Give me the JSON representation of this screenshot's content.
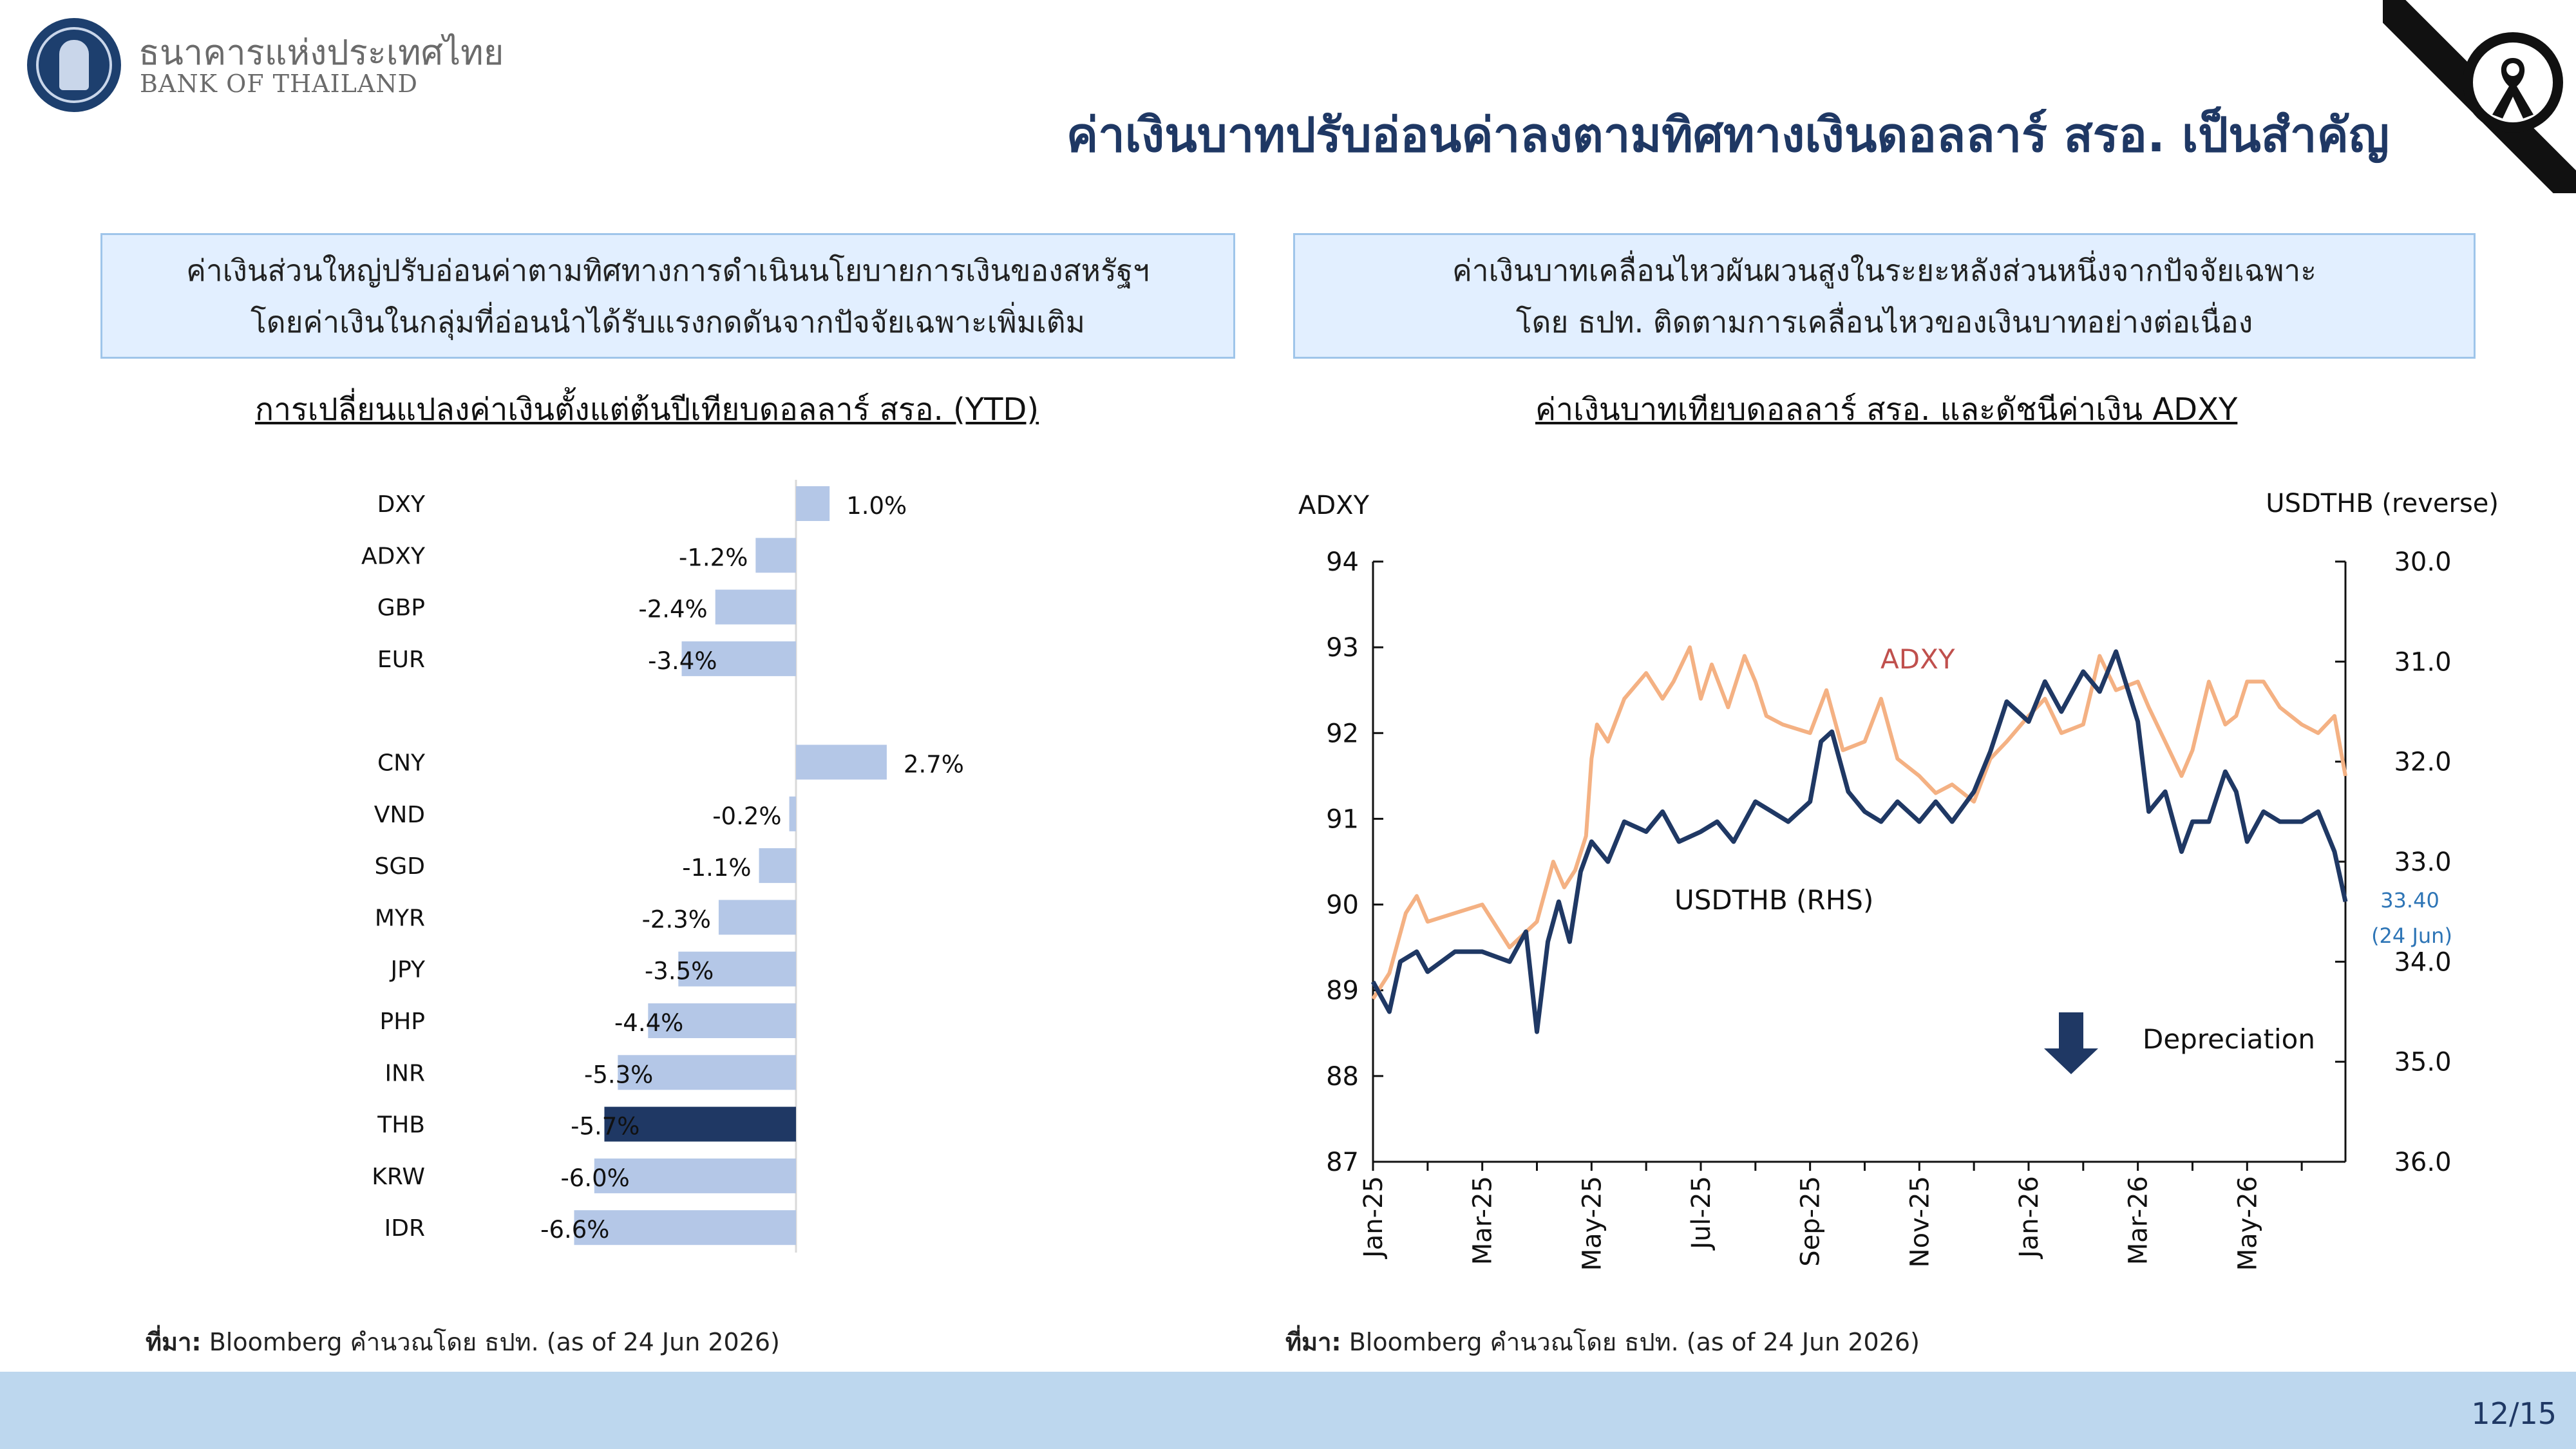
{
  "header": {
    "bank_name_th": "ธนาคารแห่งประเทศไทย",
    "bank_name_en": "BANK OF THAILAND",
    "title": "ค่าเงินบาทปรับอ่อนค่าลงตามทิศทางเงินดอลลาร์ สรอ. เป็นสำคัญ"
  },
  "left_panel": {
    "box_line1": "ค่าเงินส่วนใหญ่ปรับอ่อนค่าตามทิศทางการดำเนินนโยบายการเงินของสหรัฐฯ",
    "box_line2": "โดยค่าเงินในกลุ่มที่อ่อนนำได้รับแรงกดดันจากปัจจัยเฉพาะเพิ่มเติม",
    "chart_title": "การเปลี่ยนแปลงค่าเงินตั้งแต่ต้นปีเทียบดอลลาร์ สรอ. (YTD)",
    "source_label": "ที่มา:",
    "source_text": " Bloomberg คำนวณโดย ธปท. (as of 24 Jun 2026)"
  },
  "right_panel": {
    "box_line1": "ค่าเงินบาทเคลื่อนไหวผันผวนสูงในระยะหลังส่วนหนึ่งจากปัจจัยเฉพาะ",
    "box_line2": "โดย ธปท. ติดตามการเคลื่อนไหวของเงินบาทอย่างต่อเนื่อง",
    "chart_title": "ค่าเงินบาทเทียบดอลลาร์ สรอ. และดัชนีค่าเงิน ADXY",
    "source_label": "ที่มา:",
    "source_text": " Bloomberg คำนวณโดย ธปท. (as of 24 Jun 2026)"
  },
  "footer": {
    "page": "12/15"
  },
  "colors": {
    "navy": "#1f3864",
    "bar_light": "#b4c7e7",
    "adxy_line": "#f4b183",
    "usdthb_line": "#1f3864",
    "adxy_label": "#c0504d",
    "footer_bg": "#bdd7ee"
  },
  "chart_data": [
    {
      "type": "bar",
      "orientation": "horizontal",
      "title": "การเปลี่ยนแปลงค่าเงินตั้งแต่ต้นปีเทียบดอลลาร์ สรอ. (YTD)",
      "categories": [
        "DXY",
        "ADXY",
        "GBP",
        "EUR",
        "",
        "CNY",
        "VND",
        "SGD",
        "MYR",
        "JPY",
        "PHP",
        "INR",
        "THB",
        "KRW",
        "IDR"
      ],
      "values": [
        1.0,
        -1.2,
        -2.4,
        -3.4,
        null,
        2.7,
        -0.2,
        -1.1,
        -2.3,
        -3.5,
        -4.4,
        -5.3,
        -5.7,
        -6.0,
        -6.6
      ],
      "labels": [
        "1.0%",
        "-1.2%",
        "-2.4%",
        "-3.4%",
        "",
        "2.7%",
        "-0.2%",
        "-1.1%",
        "-2.3%",
        "-3.5%",
        "-4.4%",
        "-5.3%",
        "-5.7%",
        "-6.0%",
        "-6.6%"
      ],
      "highlight": "THB",
      "xlim": [
        -7,
        2.7
      ]
    },
    {
      "type": "line",
      "title": "ค่าเงินบาทเทียบดอลลาร์ สรอ. และดัชนีค่าเงิน ADXY",
      "y_left_label": "ADXY",
      "y_right_label": "USDTHB (reverse)",
      "y_left_lim": [
        87,
        94
      ],
      "y_left_ticks": [
        "87",
        "88",
        "89",
        "90",
        "91",
        "92",
        "93",
        "94"
      ],
      "y_right_lim": [
        36.0,
        30.0
      ],
      "y_right_ticks": [
        "30.0",
        "31.0",
        "32.0",
        "33.0",
        "34.0",
        "35.0",
        "36.0"
      ],
      "y_right_reversed": true,
      "x_ticks": [
        "Jan-25",
        "Mar-25",
        "May-25",
        "Jul-25",
        "Sep-25",
        "Nov-25",
        "Jan-26",
        "Mar-26",
        "May-26"
      ],
      "x_tick_months": [
        0,
        2,
        4,
        6,
        8,
        10,
        12,
        14,
        16
      ],
      "x_range_months": [
        0,
        17.8
      ],
      "series": [
        {
          "name": "ADXY",
          "axis": "left",
          "months": [
            0,
            0.3,
            0.6,
            0.8,
            1.0,
            1.5,
            2.0,
            2.5,
            3.0,
            3.3,
            3.5,
            3.7,
            3.9,
            4.0,
            4.1,
            4.3,
            4.6,
            5.0,
            5.3,
            5.5,
            5.8,
            6.0,
            6.2,
            6.5,
            6.8,
            7.0,
            7.2,
            7.5,
            8.0,
            8.3,
            8.6,
            9.0,
            9.3,
            9.6,
            10.0,
            10.3,
            10.6,
            11.0,
            11.3,
            11.6,
            12.0,
            12.3,
            12.6,
            13.0,
            13.3,
            13.6,
            14.0,
            14.2,
            14.5,
            14.8,
            15.0,
            15.3,
            15.6,
            15.8,
            16.0,
            16.3,
            16.6,
            17.0,
            17.3,
            17.6,
            17.8
          ],
          "values": [
            88.9,
            89.2,
            89.9,
            90.1,
            89.8,
            89.9,
            90.0,
            89.5,
            89.8,
            90.5,
            90.2,
            90.4,
            90.8,
            91.7,
            92.1,
            91.9,
            92.4,
            92.7,
            92.4,
            92.6,
            93.0,
            92.4,
            92.8,
            92.3,
            92.9,
            92.6,
            92.2,
            92.1,
            92.0,
            92.5,
            91.8,
            91.9,
            92.4,
            91.7,
            91.5,
            91.3,
            91.4,
            91.2,
            91.7,
            91.9,
            92.2,
            92.4,
            92.0,
            92.1,
            92.9,
            92.5,
            92.6,
            92.3,
            91.9,
            91.5,
            91.8,
            92.6,
            92.1,
            92.2,
            92.6,
            92.6,
            92.3,
            92.1,
            92.0,
            92.2,
            91.5
          ],
          "label": "ADXY"
        },
        {
          "name": "USDTHB",
          "axis": "right",
          "label": "USDTHB (RHS)",
          "months": [
            0,
            0.3,
            0.5,
            0.8,
            1.0,
            1.5,
            2.0,
            2.5,
            2.8,
            3.0,
            3.2,
            3.4,
            3.6,
            3.8,
            4.0,
            4.3,
            4.6,
            5.0,
            5.3,
            5.6,
            6.0,
            6.3,
            6.6,
            7.0,
            7.3,
            7.6,
            8.0,
            8.2,
            8.4,
            8.7,
            9.0,
            9.3,
            9.6,
            10.0,
            10.3,
            10.6,
            11.0,
            11.3,
            11.6,
            12.0,
            12.3,
            12.6,
            13.0,
            13.3,
            13.6,
            14.0,
            14.2,
            14.5,
            14.8,
            15.0,
            15.3,
            15.6,
            15.8,
            16.0,
            16.3,
            16.6,
            17.0,
            17.3,
            17.6,
            17.8
          ],
          "values": [
            34.2,
            34.5,
            34.0,
            33.9,
            34.1,
            33.9,
            33.9,
            34.0,
            33.7,
            34.7,
            33.8,
            33.4,
            33.8,
            33.1,
            32.8,
            33.0,
            32.6,
            32.7,
            32.5,
            32.8,
            32.7,
            32.6,
            32.8,
            32.4,
            32.5,
            32.6,
            32.4,
            31.8,
            31.7,
            32.3,
            32.5,
            32.6,
            32.4,
            32.6,
            32.4,
            32.6,
            32.3,
            31.9,
            31.4,
            31.6,
            31.2,
            31.5,
            31.1,
            31.3,
            30.9,
            31.6,
            32.5,
            32.3,
            32.9,
            32.6,
            32.6,
            32.1,
            32.3,
            32.8,
            32.5,
            32.6,
            32.6,
            32.5,
            32.9,
            33.4
          ]
        }
      ],
      "annotations": {
        "last_value": "33.40",
        "last_date": "(24 Jun)",
        "depreciation": "Depreciation"
      }
    }
  ]
}
